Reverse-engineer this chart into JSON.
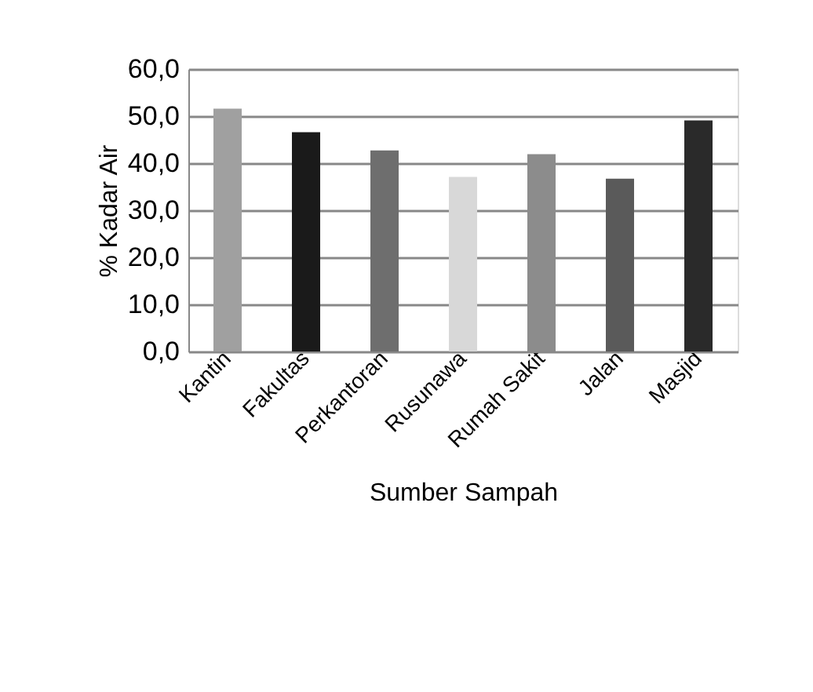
{
  "chart_data": {
    "type": "bar",
    "xlabel": "Sumber Sampah",
    "ylabel": "% Kadar Air",
    "categories": [
      "Kantin",
      "Fakultas",
      "Perkantoran",
      "Rusunawa",
      "Rumah Sakit",
      "Jalan",
      "Masjid"
    ],
    "values": [
      51.6,
      46.6,
      42.7,
      37.1,
      41.9,
      36.7,
      49.1
    ],
    "colors": [
      "#a0a0a0",
      "#1a1a1a",
      "#6e6e6e",
      "#d8d8d8",
      "#8c8c8c",
      "#5a5a5a",
      "#2a2a2a"
    ],
    "ylim": [
      0,
      60
    ],
    "yticks": [
      {
        "value": 0,
        "label": "0,0"
      },
      {
        "value": 10,
        "label": "10,0"
      },
      {
        "value": 20,
        "label": "20,0"
      },
      {
        "value": 30,
        "label": "30,0"
      },
      {
        "value": 40,
        "label": "40,0"
      },
      {
        "value": 50,
        "label": "50,0"
      },
      {
        "value": 60,
        "label": "60,0"
      }
    ],
    "grid": "y"
  }
}
